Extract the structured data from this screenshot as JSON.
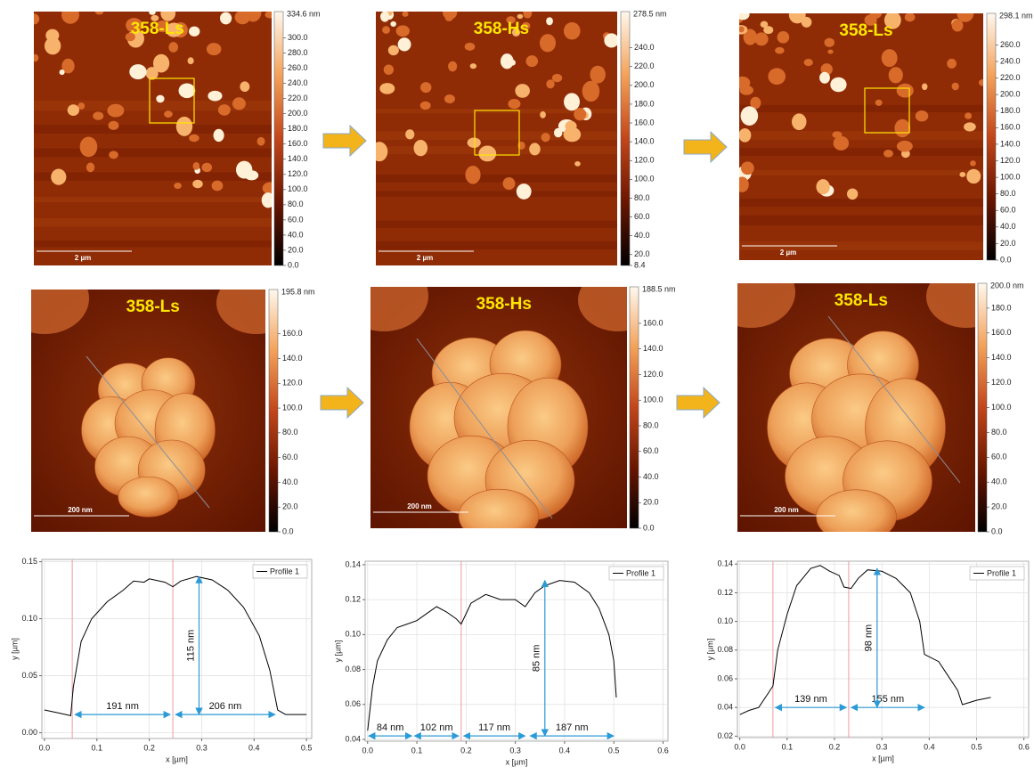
{
  "afm_panels": [
    {
      "label": "358-Ls",
      "scale_bar": "2 µm",
      "colorbar": {
        "range": [
          0,
          334.6
        ],
        "max_label": "334.6 nm",
        "ticks": [
          {
            "value": 0,
            "label": "0.0"
          },
          {
            "value": 20,
            "label": "20.0"
          },
          {
            "value": 40,
            "label": "40.0"
          },
          {
            "value": 60,
            "label": "60.0"
          },
          {
            "value": 80,
            "label": "80.0"
          },
          {
            "value": 100,
            "label": "100.0"
          },
          {
            "value": 120,
            "label": "120.0"
          },
          {
            "value": 140,
            "label": "140.0"
          },
          {
            "value": 160,
            "label": "160.0"
          },
          {
            "value": 180,
            "label": "180.0"
          },
          {
            "value": 200,
            "label": "200.0"
          },
          {
            "value": 220,
            "label": "220.0"
          },
          {
            "value": 240,
            "label": "240.0"
          },
          {
            "value": 260,
            "label": "260.0"
          },
          {
            "value": 280,
            "label": "280.0"
          },
          {
            "value": 300,
            "label": "300.0"
          }
        ]
      }
    },
    {
      "label": "358-Hs",
      "scale_bar": "2 µm",
      "colorbar": {
        "range": [
          8.4,
          278.5
        ],
        "max_label": "278.5 nm",
        "ticks": [
          8.4,
          {
            "value": 20,
            "label": "20.0"
          },
          {
            "value": 40,
            "label": "40.0"
          },
          {
            "value": 60,
            "label": "60.0"
          },
          {
            "value": 80,
            "label": "80.0"
          },
          {
            "value": 100,
            "label": "100.0"
          },
          {
            "value": 120,
            "label": "120.0"
          },
          {
            "value": 140,
            "label": "140.0"
          },
          {
            "value": 160,
            "label": "160.0"
          },
          {
            "value": 180,
            "label": "180.0"
          },
          {
            "value": 200,
            "label": "200.0"
          },
          {
            "value": 220,
            "label": "220.0"
          },
          {
            "value": 240,
            "label": "240.0"
          }
        ]
      }
    },
    {
      "label": "358-Ls",
      "scale_bar": "2 µm",
      "colorbar": {
        "range": [
          0,
          298.1
        ],
        "max_label": "298.1 nm",
        "ticks": [
          {
            "value": 0,
            "label": "0.0"
          },
          {
            "value": 20,
            "label": "20.0"
          },
          {
            "value": 40,
            "label": "40.0"
          },
          {
            "value": 60,
            "label": "60.0"
          },
          {
            "value": 80,
            "label": "80.0"
          },
          {
            "value": 100,
            "label": "100.0"
          },
          {
            "value": 120,
            "label": "120.0"
          },
          {
            "value": 140,
            "label": "140.0"
          },
          {
            "value": 160,
            "label": "160.0"
          },
          {
            "value": 180,
            "label": "180.0"
          },
          {
            "value": 200,
            "label": "200.0"
          },
          {
            "value": 220,
            "label": "220.0"
          },
          {
            "value": 240,
            "label": "240.0"
          },
          {
            "value": 260,
            "label": "260.0"
          }
        ]
      }
    },
    {
      "label": "358-Ls",
      "scale_bar": "200 nm",
      "colorbar": {
        "range": [
          0,
          195.8
        ],
        "max_label": "195.8 nm",
        "ticks": [
          {
            "value": 0,
            "label": "0.0"
          },
          {
            "value": 20,
            "label": "20.0"
          },
          {
            "value": 40,
            "label": "40.0"
          },
          {
            "value": 60,
            "label": "60.0"
          },
          {
            "value": 80,
            "label": "80.0"
          },
          {
            "value": 100,
            "label": "100.0"
          },
          {
            "value": 120,
            "label": "120.0"
          },
          {
            "value": 140,
            "label": "140.0"
          },
          {
            "value": 160,
            "label": "160.0"
          }
        ]
      }
    },
    {
      "label": "358-Hs",
      "scale_bar": "200 nm",
      "colorbar": {
        "range": [
          0,
          188.5
        ],
        "max_label": "188.5 nm",
        "ticks": [
          {
            "value": 0,
            "label": "0.0"
          },
          {
            "value": 20,
            "label": "20.0"
          },
          {
            "value": 40,
            "label": "40.0"
          },
          {
            "value": 60,
            "label": "60.0"
          },
          {
            "value": 80,
            "label": "80.0"
          },
          {
            "value": 100,
            "label": "100.0"
          },
          {
            "value": 120,
            "label": "120.0"
          },
          {
            "value": 140,
            "label": "140.0"
          },
          {
            "value": 160,
            "label": "160.0"
          }
        ]
      }
    },
    {
      "label": "358-Ls",
      "scale_bar": "200 nm",
      "colorbar": {
        "range": [
          0,
          200
        ],
        "max_label": "200.0 nm",
        "ticks": [
          {
            "value": 0,
            "label": "0.0"
          },
          {
            "value": 20,
            "label": "20.0"
          },
          {
            "value": 40,
            "label": "40.0"
          },
          {
            "value": 60,
            "label": "60.0"
          },
          {
            "value": 80,
            "label": "80.0"
          },
          {
            "value": 100,
            "label": "100.0"
          },
          {
            "value": 120,
            "label": "120.0"
          },
          {
            "value": 140,
            "label": "140.0"
          },
          {
            "value": 160,
            "label": "160.0"
          },
          {
            "value": 180,
            "label": "180.0"
          }
        ]
      }
    }
  ],
  "chart_data": [
    {
      "type": "line",
      "xlabel": "x [µm]",
      "ylabel": "y [µm]",
      "grid": true,
      "legend": "upper right",
      "x": [
        0,
        0.03,
        0.05,
        0.055,
        0.07,
        0.09,
        0.12,
        0.15,
        0.17,
        0.19,
        0.2,
        0.23,
        0.245,
        0.26,
        0.29,
        0.32,
        0.35,
        0.38,
        0.41,
        0.43,
        0.445,
        0.46,
        0.5
      ],
      "series": [
        {
          "name": "Profile 1",
          "color": "#000000",
          "values": [
            0.02,
            0.017,
            0.015,
            0.04,
            0.08,
            0.1,
            0.115,
            0.125,
            0.133,
            0.132,
            0.135,
            0.132,
            0.128,
            0.133,
            0.137,
            0.134,
            0.125,
            0.11,
            0.085,
            0.055,
            0.02,
            0.016,
            0.016
          ]
        }
      ],
      "xlim": [
        -0.005,
        0.51
      ],
      "ylim": [
        -0.005,
        0.152
      ],
      "xticks": [
        {
          "value": 0,
          "label": "0.0"
        },
        0.1,
        0.2,
        0.3,
        0.4,
        0.5
      ],
      "yticks": [
        {
          "value": 0,
          "label": "0.00"
        },
        0.05,
        {
          "value": 0.1,
          "label": "0.10"
        },
        0.15
      ],
      "markers": [
        0.053,
        0.245
      ],
      "annotations": [
        {
          "text": "191 nm",
          "x": [
            0.058,
            0.24
          ],
          "y": [
            0.016,
            0.016
          ]
        },
        {
          "text": "206 nm",
          "x": [
            0.25,
            0.44
          ],
          "y": [
            0.016,
            0.016
          ]
        },
        {
          "text": "115 nm",
          "x": [
            0.295,
            0.295
          ],
          "y": [
            0.016,
            0.137
          ]
        }
      ]
    },
    {
      "type": "line",
      "xlabel": "x [µm]",
      "ylabel": "y [µm]",
      "grid": true,
      "legend": "upper right",
      "x": [
        0,
        0.01,
        0.02,
        0.04,
        0.06,
        0.08,
        0.1,
        0.12,
        0.14,
        0.16,
        0.18,
        0.19,
        0.21,
        0.24,
        0.27,
        0.3,
        0.32,
        0.34,
        0.36,
        0.39,
        0.42,
        0.45,
        0.47,
        0.49,
        0.5,
        0.505
      ],
      "series": [
        {
          "name": "Profile 1",
          "color": "#000000",
          "values": [
            0.045,
            0.07,
            0.085,
            0.097,
            0.104,
            0.106,
            0.108,
            0.112,
            0.116,
            0.113,
            0.109,
            0.106,
            0.118,
            0.123,
            0.12,
            0.12,
            0.116,
            0.124,
            0.128,
            0.131,
            0.13,
            0.124,
            0.115,
            0.1,
            0.085,
            0.064
          ]
        }
      ],
      "xlim": [
        -0.005,
        0.61
      ],
      "ylim": [
        0.039,
        0.142
      ],
      "xticks": [
        {
          "value": 0,
          "label": "0.0"
        },
        0.1,
        0.2,
        0.3,
        0.4,
        0.5,
        0.6
      ],
      "yticks": [
        0.04,
        0.06,
        0.08,
        {
          "value": 0.1,
          "label": "0.10"
        },
        0.12,
        0.14
      ],
      "markers": [
        0.19
      ],
      "annotations": [
        {
          "text": "84 nm",
          "x": [
            0.002,
            0.09
          ],
          "y": [
            0.042,
            0.042
          ]
        },
        {
          "text": "102 nm",
          "x": [
            0.095,
            0.185
          ],
          "y": [
            0.042,
            0.042
          ]
        },
        {
          "text": "117 nm",
          "x": [
            0.195,
            0.32
          ],
          "y": [
            0.042,
            0.042
          ]
        },
        {
          "text": "187 nm",
          "x": [
            0.33,
            0.5
          ],
          "y": [
            0.042,
            0.042
          ]
        },
        {
          "text": "85 nm",
          "x": [
            0.36,
            0.36
          ],
          "y": [
            0.042,
            0.131
          ]
        }
      ]
    },
    {
      "type": "line",
      "xlabel": "x [µm]",
      "ylabel": "y [µm]",
      "grid": true,
      "legend": "upper right",
      "x": [
        0,
        0.02,
        0.04,
        0.06,
        0.07,
        0.08,
        0.1,
        0.12,
        0.15,
        0.17,
        0.19,
        0.21,
        0.22,
        0.235,
        0.25,
        0.27,
        0.3,
        0.33,
        0.36,
        0.38,
        0.39,
        0.42,
        0.44,
        0.46,
        0.47,
        0.5,
        0.53
      ],
      "series": [
        {
          "name": "Profile 1",
          "color": "#000000",
          "values": [
            0.035,
            0.038,
            0.04,
            0.05,
            0.055,
            0.08,
            0.105,
            0.125,
            0.137,
            0.139,
            0.135,
            0.132,
            0.124,
            0.123,
            0.13,
            0.136,
            0.135,
            0.13,
            0.12,
            0.1,
            0.077,
            0.072,
            0.062,
            0.052,
            0.042,
            0.045,
            0.047
          ]
        }
      ],
      "xlim": [
        -0.005,
        0.61
      ],
      "ylim": [
        0.019,
        0.142
      ],
      "xticks": [
        {
          "value": 0,
          "label": "0.0"
        },
        0.1,
        0.2,
        0.3,
        0.4,
        0.5,
        0.6
      ],
      "yticks": [
        0.02,
        0.04,
        0.06,
        0.08,
        {
          "value": 0.1,
          "label": "0.10"
        },
        0.12,
        0.14
      ],
      "markers": [
        0.07,
        0.23
      ],
      "annotations": [
        {
          "text": "139 nm",
          "x": [
            0.075,
            0.225
          ],
          "y": [
            0.04,
            0.04
          ]
        },
        {
          "text": "155 nm",
          "x": [
            0.235,
            0.39
          ],
          "y": [
            0.04,
            0.04
          ]
        },
        {
          "text": "98 nm",
          "x": [
            0.29,
            0.29
          ],
          "y": [
            0.04,
            0.137
          ]
        }
      ]
    }
  ]
}
